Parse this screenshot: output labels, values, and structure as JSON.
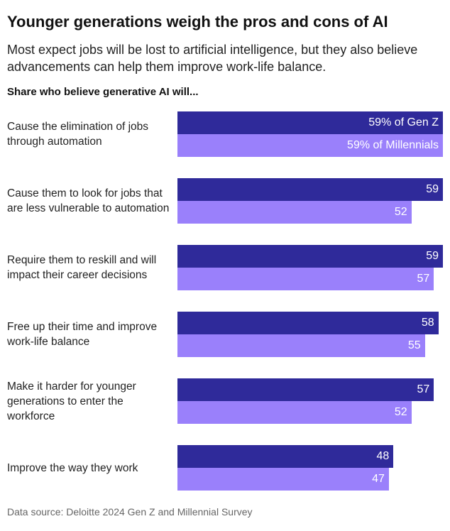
{
  "title": "Younger generations weigh the pros and cons of AI",
  "subtitle": "Most expect jobs will be lost to artificial intelligence, but they also believe advancements can help them improve work-life balance.",
  "lead": "Share who believe generative AI will...",
  "source": "Data source: Deloitte 2024 Gen Z and Millennial Survey",
  "chart_data": {
    "type": "bar",
    "orientation": "horizontal",
    "categories": [
      "Cause the elimination of jobs through automation",
      "Cause them to look for jobs that are less vulnerable to automation",
      "Require them to reskill and will impact their career decisions",
      "Free up their time and improve work-life balance",
      "Make it harder for younger generations to enter the workforce",
      "Improve the way they work"
    ],
    "series": [
      {
        "name": "Gen Z",
        "color": "#2f2a9a",
        "values": [
          59,
          59,
          59,
          58,
          57,
          48
        ],
        "labels": [
          "59% of Gen Z",
          "59",
          "59",
          "58",
          "57",
          "48"
        ]
      },
      {
        "name": "Millennials",
        "color": "#9a80fb",
        "values": [
          59,
          52,
          57,
          55,
          52,
          47
        ],
        "labels": [
          "59% of Millennials",
          "52",
          "57",
          "55",
          "52",
          "47"
        ]
      }
    ],
    "unit": "%",
    "grid": false
  }
}
